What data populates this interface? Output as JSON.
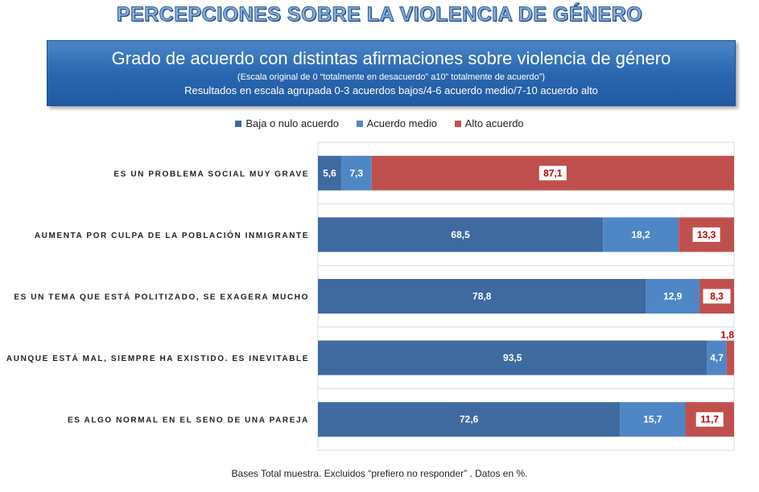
{
  "header": {
    "title": "PERCEPCIONES SOBRE LA VIOLENCIA DE GÉNERO"
  },
  "banner": {
    "title": "Grado de acuerdo con distintas afirmaciones sobre violencia de género",
    "subtitle1": "(Escala original de 0 “totalmente en desacuerdo” a10” totalmente de acuerdo”)",
    "subtitle2": "Resultados en escala agrupada 0-3 acuerdos bajos/4-6 acuerdo medio/7-10 acuerdo alto"
  },
  "footnote": "Bases Total muestra. Excluidos “prefiero no responder” . Datos en %.",
  "colors": {
    "low": "#3e6aa0",
    "medium": "#4f86c6",
    "high": "#c0504d"
  },
  "chart_data": {
    "type": "bar",
    "orientation": "horizontal",
    "stacked": true,
    "xlim": [
      0,
      100
    ],
    "legend_position": "top",
    "categories": [
      "ES UN PROBLEMA SOCIAL MUY GRAVE",
      "AUMENTA POR CULPA DE LA POBLACIÓN INMIGRANTE",
      "ES UN TEMA QUE ESTÁ POLITIZADO, SE EXAGERA MUCHO",
      "AUNQUE ESTÁ MAL, SIEMPRE HA EXISTIDO. ES INEVITABLE",
      "ES ALGO NORMAL EN EL SENO DE UNA PAREJA"
    ],
    "series": [
      {
        "name": "Baja o nulo acuerdo",
        "values": [
          5.6,
          68.5,
          78.8,
          93.5,
          72.6
        ]
      },
      {
        "name": "Acuerdo medio",
        "values": [
          7.3,
          18.2,
          12.9,
          4.7,
          15.7
        ]
      },
      {
        "name": "Alto acuerdo",
        "values": [
          87.1,
          13.3,
          8.3,
          1.8,
          11.7
        ]
      }
    ]
  }
}
